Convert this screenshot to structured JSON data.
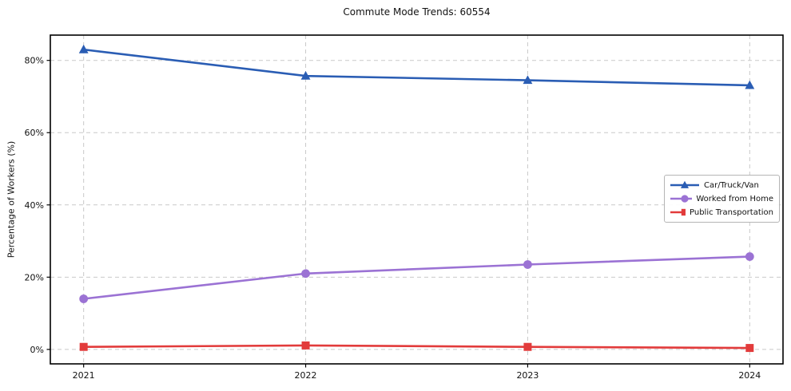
{
  "chart_data": {
    "type": "line",
    "title": "Commute Mode Trends: 60554",
    "xlabel": "",
    "ylabel": "Percentage of Workers (%)",
    "x": [
      2021,
      2022,
      2023,
      2024
    ],
    "x_tick_labels": [
      "2021",
      "2022",
      "2023",
      "2024"
    ],
    "y_ticks": [
      0,
      20,
      40,
      60,
      80
    ],
    "y_tick_labels": [
      "0%",
      "20%",
      "40%",
      "60%",
      "80%"
    ],
    "ylim": [
      -4,
      87
    ],
    "xlim": [
      2020.85,
      2024.15
    ],
    "grid": true,
    "grid_style": "dashed",
    "grid_color": "#c9c9c9",
    "spine_color": "#000000",
    "legend_position": "center-right",
    "series": [
      {
        "name": "Car/Truck/Van",
        "color": "#2a5db4",
        "marker": "triangle",
        "values": [
          83.0,
          75.7,
          74.5,
          73.1
        ]
      },
      {
        "name": "Worked from Home",
        "color": "#9b72d4",
        "marker": "circle",
        "values": [
          14.0,
          21.0,
          23.5,
          25.7
        ]
      },
      {
        "name": "Public Transportation",
        "color": "#e23b3b",
        "marker": "square",
        "values": [
          0.7,
          1.1,
          0.7,
          0.4
        ]
      }
    ]
  }
}
